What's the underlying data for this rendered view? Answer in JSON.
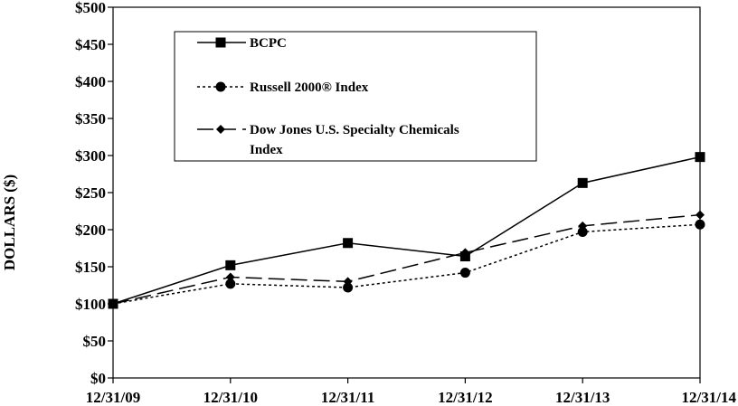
{
  "chart_data": {
    "type": "line",
    "ylabel": "DOLLARS ($)",
    "xlabel": "",
    "title": "",
    "categories": [
      "12/31/09",
      "12/31/10",
      "12/31/11",
      "12/31/12",
      "12/31/13",
      "12/31/14"
    ],
    "ylim": [
      0,
      500
    ],
    "y_ticks": [
      0,
      50,
      100,
      150,
      200,
      250,
      300,
      350,
      400,
      450,
      500
    ],
    "y_tick_labels": [
      "$0",
      "$50",
      "$100",
      "$150",
      "$200",
      "$250",
      "$300",
      "$350",
      "$400",
      "$450",
      "$500"
    ],
    "grid": false,
    "legend_position": "top-left",
    "series": [
      {
        "name": "BCPC",
        "values": [
          100,
          152,
          182,
          164,
          263,
          298
        ],
        "line_style": "solid",
        "marker": "square",
        "color": "#000000"
      },
      {
        "name": "Russell 2000® Index",
        "values": [
          100,
          127,
          122,
          142,
          197,
          207
        ],
        "line_style": "dotted",
        "marker": "circle",
        "color": "#000000"
      },
      {
        "name": "Dow Jones U.S. Specialty Chemicals Index",
        "name_lines": [
          "Dow Jones U.S. Specialty Chemicals",
          "Index"
        ],
        "values": [
          100,
          136,
          130,
          169,
          205,
          220
        ],
        "line_style": "dashed",
        "marker": "diamond",
        "color": "#000000"
      }
    ]
  }
}
